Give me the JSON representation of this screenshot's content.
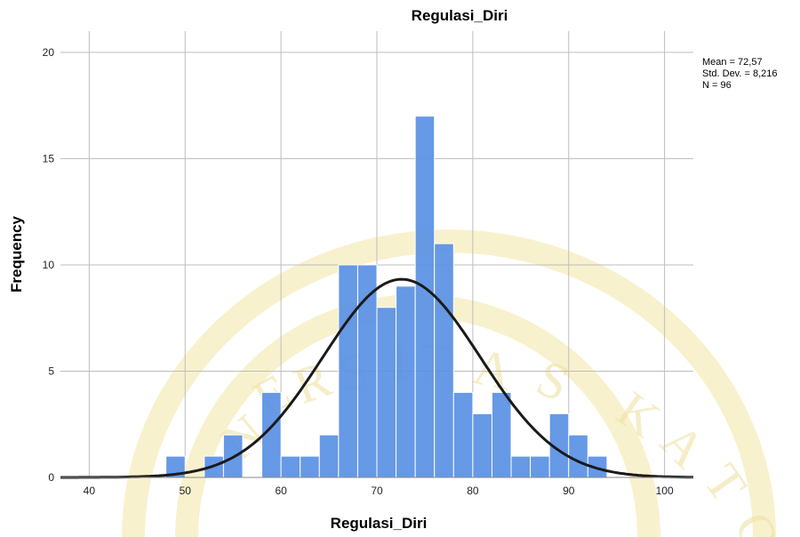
{
  "chart_data": {
    "type": "bar",
    "title": "Regulasi_Diri",
    "xlabel": "Regulasi_Diri",
    "ylabel": "Frequency",
    "xlim": [
      37,
      103
    ],
    "ylim": [
      0,
      21
    ],
    "xticks": [
      40,
      50,
      60,
      70,
      80,
      90,
      100
    ],
    "yticks": [
      0,
      5,
      10,
      15,
      20
    ],
    "grid": true,
    "bin_width": 2,
    "bins": [
      {
        "start": 48,
        "count": 1
      },
      {
        "start": 52,
        "count": 1
      },
      {
        "start": 54,
        "count": 2
      },
      {
        "start": 58,
        "count": 4
      },
      {
        "start": 60,
        "count": 1
      },
      {
        "start": 62,
        "count": 1
      },
      {
        "start": 64,
        "count": 2
      },
      {
        "start": 66,
        "count": 10
      },
      {
        "start": 68,
        "count": 10
      },
      {
        "start": 70,
        "count": 8
      },
      {
        "start": 72,
        "count": 9
      },
      {
        "start": 74,
        "count": 17
      },
      {
        "start": 76,
        "count": 11
      },
      {
        "start": 78,
        "count": 4
      },
      {
        "start": 80,
        "count": 3
      },
      {
        "start": 82,
        "count": 4
      },
      {
        "start": 84,
        "count": 1
      },
      {
        "start": 86,
        "count": 1
      },
      {
        "start": 88,
        "count": 3
      },
      {
        "start": 90,
        "count": 2
      },
      {
        "start": 92,
        "count": 1
      }
    ],
    "normal_curve": {
      "mean": 72.57,
      "std": 8.216,
      "n": 96
    },
    "stats_text": [
      "Mean = 72,57",
      "Std. Dev. = 8,216",
      "N = 96"
    ],
    "colors": {
      "bar": "#5b92e5",
      "curve": "#1a1a1a",
      "grid": "#bdbdbd"
    }
  },
  "watermark": {
    "text": "UNIVERSITAS KATOLIK"
  }
}
